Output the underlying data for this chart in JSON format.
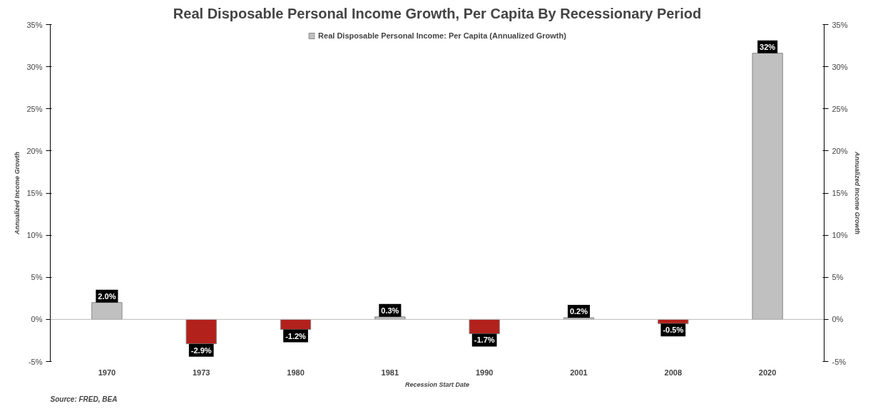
{
  "chart_data": {
    "type": "bar",
    "title": "Real Disposable Personal Income Growth, Per Capita By Recessionary Period",
    "xlabel": "Recession Start Date",
    "ylabel": "Annualized Income Growth",
    "y2label": "Annualized Income Growth",
    "categories": [
      "1970",
      "1973",
      "1980",
      "1981",
      "1990",
      "2001",
      "2008",
      "2020"
    ],
    "series": [
      {
        "name": "Real Disposable Personal Income: Per Capita (Annualized Growth)",
        "colors": [
          "#c0c0c0",
          "#b3211c",
          "#b3211c",
          "#c0c0c0",
          "#b3211c",
          "#c0c0c0",
          "#b3211c",
          "#c0c0c0"
        ],
        "values": [
          2.0,
          -2.9,
          -1.2,
          0.3,
          -1.7,
          0.2,
          -0.5,
          31.6
        ],
        "value_labels": [
          "2.0%",
          "-2.9%",
          "-1.2%",
          "0.3%",
          "-1.7%",
          "0.2%",
          "-0.5%",
          "32%"
        ]
      }
    ],
    "ylim": [
      -5,
      35
    ],
    "yticks": [
      {
        "value": -5,
        "label": "-5%"
      },
      {
        "value": 0,
        "label": "0%"
      },
      {
        "value": 5,
        "label": "5%"
      },
      {
        "value": 10,
        "label": "10%"
      },
      {
        "value": 15,
        "label": "15%"
      },
      {
        "value": 20,
        "label": "20%"
      },
      {
        "value": 25,
        "label": "25%"
      },
      {
        "value": 30,
        "label": "30%"
      },
      {
        "value": 35,
        "label": "35%"
      }
    ],
    "y2lim": [
      -5,
      35
    ],
    "y2ticks": [
      {
        "value": -5,
        "label": "-5%"
      },
      {
        "value": 0,
        "label": "0%"
      },
      {
        "value": 5,
        "label": "5%"
      },
      {
        "value": 10,
        "label": "10%"
      },
      {
        "value": 15,
        "label": "15%"
      },
      {
        "value": 20,
        "label": "20%"
      },
      {
        "value": 25,
        "label": "25%"
      },
      {
        "value": 30,
        "label": "30%"
      },
      {
        "value": 35,
        "label": "35%"
      }
    ],
    "legend": "top",
    "annotations": [
      "Source: FRED, BEA"
    ]
  }
}
